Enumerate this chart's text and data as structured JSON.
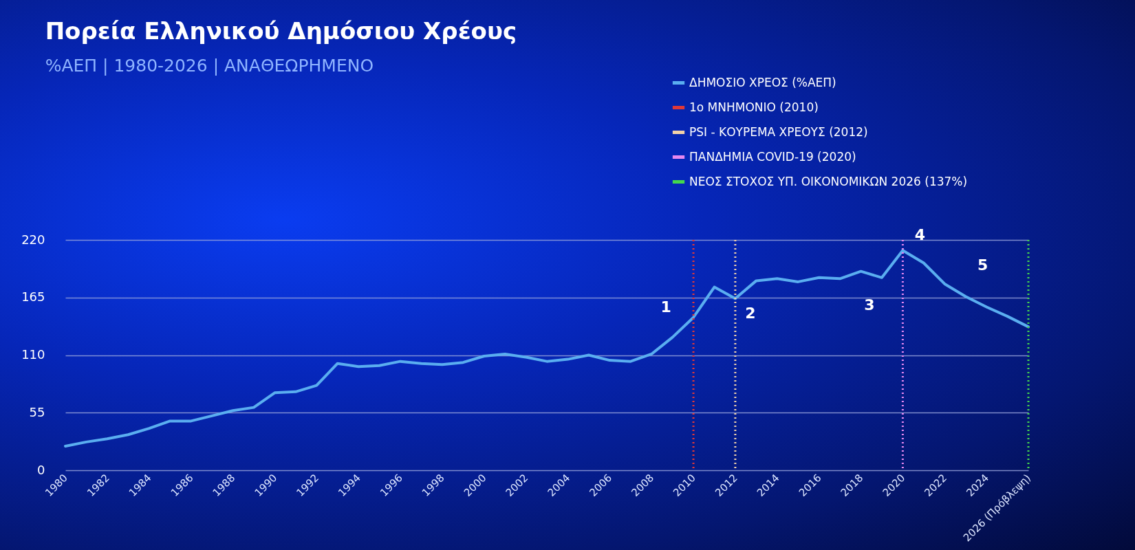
{
  "chart_data": {
    "type": "line",
    "title": "Πορεία Ελληνικού Δημόσιου Χρέους",
    "subtitle": "%ΑΕΠ | 1980-2026 | ΑΝΑΘΕΩΡΗΜΕΝΟ",
    "x": [
      1980,
      1981,
      1982,
      1983,
      1984,
      1985,
      1986,
      1987,
      1988,
      1989,
      1990,
      1991,
      1992,
      1993,
      1994,
      1995,
      1996,
      1997,
      1998,
      1999,
      2000,
      2001,
      2002,
      2003,
      2004,
      2005,
      2006,
      2007,
      2008,
      2009,
      2010,
      2011,
      2012,
      2013,
      2014,
      2015,
      2016,
      2017,
      2018,
      2019,
      2020,
      2021,
      2022,
      2023,
      2024,
      2025,
      2026
    ],
    "series": [
      {
        "name": "ΔΗΜΟΣΙΟ ΧΡΕΟΣ (%ΑΕΠ)",
        "color": "#5aaef0",
        "values": [
          23,
          27,
          30,
          34,
          40,
          47,
          47,
          52,
          57,
          60,
          74,
          75,
          81,
          102,
          99,
          100,
          104,
          102,
          101,
          103,
          109,
          111,
          108,
          104,
          106,
          110,
          105,
          104,
          111,
          127,
          146,
          175,
          164,
          181,
          183,
          180,
          184,
          183,
          190,
          184,
          210,
          198,
          178,
          166,
          156,
          147,
          137
        ]
      }
    ],
    "ref_lines": [
      {
        "axis": "x",
        "value": 2010,
        "label": "1ο ΜΝΗΜΟΝΙΟ (2010)",
        "color": "#e03838",
        "line_style": "dotted"
      },
      {
        "axis": "x",
        "value": 2012,
        "label": "PSI - ΚΟΥΡΕΜΑ ΧΡΕΟΥΣ (2012)",
        "color": "#f2d2a8",
        "line_style": "dotted"
      },
      {
        "axis": "x",
        "value": 2020,
        "label": "ΠΑΝΔΗΜΙΑ COVID-19 (2020)",
        "color": "#e888f0",
        "line_style": "dotted"
      },
      {
        "axis": "x",
        "value": 2026,
        "label": "ΝΕΟΣ ΣΤΟΧΟΣ ΥΠ. ΟΙΚΟΝΟΜΙΚΩΝ 2026 (137%)",
        "color": "#44d84c",
        "line_style": "dotted"
      }
    ],
    "annotations": [
      {
        "text": "1",
        "x": 2010,
        "y": 146
      },
      {
        "text": "2",
        "x": 2012,
        "y": 164
      },
      {
        "text": "3",
        "x": 2019,
        "y": 184
      },
      {
        "text": "4",
        "x": 2020,
        "y": 210
      },
      {
        "text": "5",
        "x": 2023,
        "y": 166
      }
    ],
    "xlim": [
      1980,
      2026
    ],
    "xticks": [
      1980,
      1982,
      1984,
      1986,
      1988,
      1990,
      1992,
      1994,
      1996,
      1998,
      2000,
      2002,
      2004,
      2006,
      2008,
      2010,
      2012,
      2014,
      2016,
      2018,
      2020,
      2022,
      2024,
      {
        "value": 2026,
        "label": "2026 (Πρόβλεψη)"
      }
    ],
    "ylim": [
      0,
      220
    ],
    "yticks": [
      0,
      55,
      110,
      165,
      220
    ],
    "grid": "y",
    "legend": "top right"
  }
}
